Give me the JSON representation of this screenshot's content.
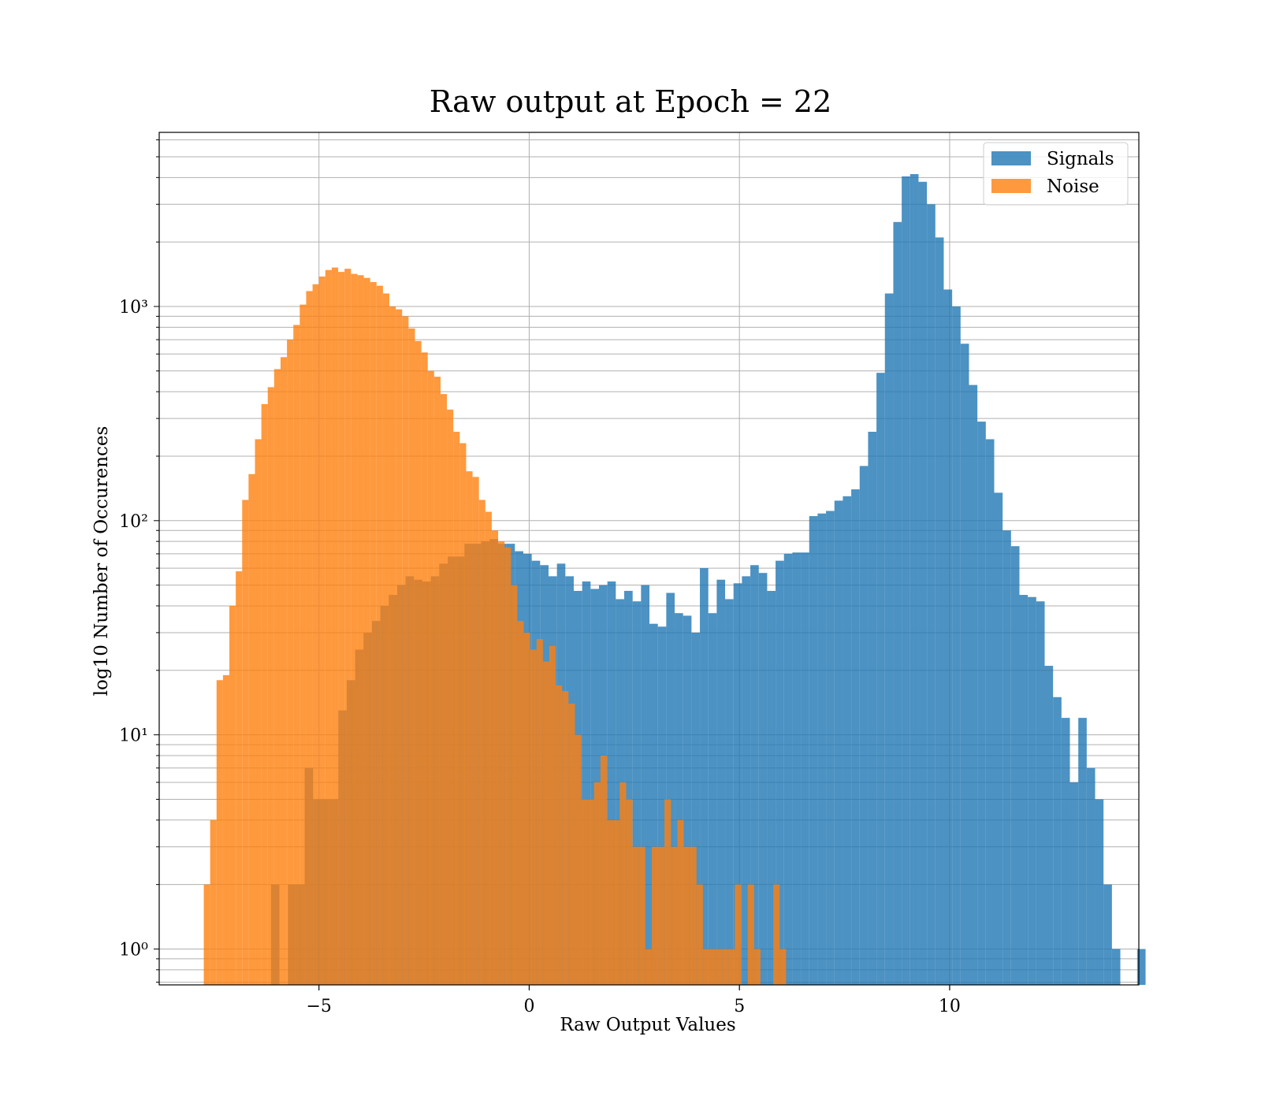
{
  "chart_data": {
    "type": "bar",
    "title": "Raw output at Epoch = 22",
    "xlabel": "Raw Output Values",
    "ylabel": "log10 Number of Occurences",
    "xlim": [
      -8.8,
      14.5
    ],
    "ylim": [
      0.68,
      6500
    ],
    "yscale": "log",
    "x_ticks": [
      -5,
      0,
      5,
      10
    ],
    "x_tick_labels": [
      "−5",
      "0",
      "5",
      "10"
    ],
    "y_ticks": [
      1,
      10,
      100,
      1000
    ],
    "y_tick_labels": [
      "10⁰",
      "10¹",
      "10²",
      "10³"
    ],
    "grid": true,
    "legend_position": "top-right",
    "legend": [
      "Signals",
      "Noise"
    ],
    "colors": {
      "Signals": "#1f77b4",
      "Noise": "#ff7f0e"
    },
    "alpha": 0.8,
    "series": [
      {
        "name": "Signals",
        "bin_start": -6.14,
        "bin_width": 0.2,
        "counts": [
          2,
          0,
          2,
          2,
          7,
          5,
          5,
          5,
          13,
          18,
          25,
          30,
          34,
          40,
          45,
          50,
          55,
          53,
          52,
          55,
          63,
          68,
          68,
          78,
          78,
          80,
          82,
          78,
          78,
          72,
          70,
          65,
          62,
          55,
          63,
          55,
          47,
          52,
          48,
          50,
          52,
          43,
          47,
          42,
          50,
          33,
          32,
          46,
          37,
          36,
          30,
          60,
          37,
          53,
          43,
          51,
          55,
          62,
          57,
          47,
          65,
          70,
          71,
          71,
          105,
          108,
          111,
          124,
          130,
          140,
          180,
          260,
          490,
          1150,
          2480,
          4050,
          4150,
          3820,
          3000,
          2100,
          1200,
          1000,
          670,
          430,
          290,
          240,
          135,
          90,
          76,
          45,
          44,
          42,
          21,
          15,
          12,
          6,
          12,
          7,
          5,
          2,
          1,
          0,
          0,
          1
        ]
      },
      {
        "name": "Noise",
        "bin_start": -7.74,
        "bin_width": 0.1522,
        "counts": [
          2,
          4,
          18,
          19,
          40,
          58,
          125,
          165,
          240,
          350,
          420,
          510,
          580,
          700,
          820,
          1020,
          1180,
          1270,
          1380,
          1480,
          1520,
          1450,
          1500,
          1420,
          1400,
          1360,
          1300,
          1250,
          1150,
          1000,
          970,
          900,
          790,
          690,
          610,
          500,
          470,
          390,
          330,
          260,
          230,
          170,
          160,
          125,
          110,
          90,
          80,
          75,
          50,
          34,
          30,
          25,
          28,
          22,
          26,
          17,
          16,
          14,
          10,
          5,
          5,
          6,
          8,
          4,
          4,
          6,
          5,
          3,
          3,
          1,
          3,
          3,
          5,
          3,
          4,
          3,
          3,
          2,
          1,
          1,
          1,
          1,
          1,
          2,
          0,
          2,
          1,
          0,
          0,
          2,
          1,
          0
        ]
      }
    ]
  }
}
